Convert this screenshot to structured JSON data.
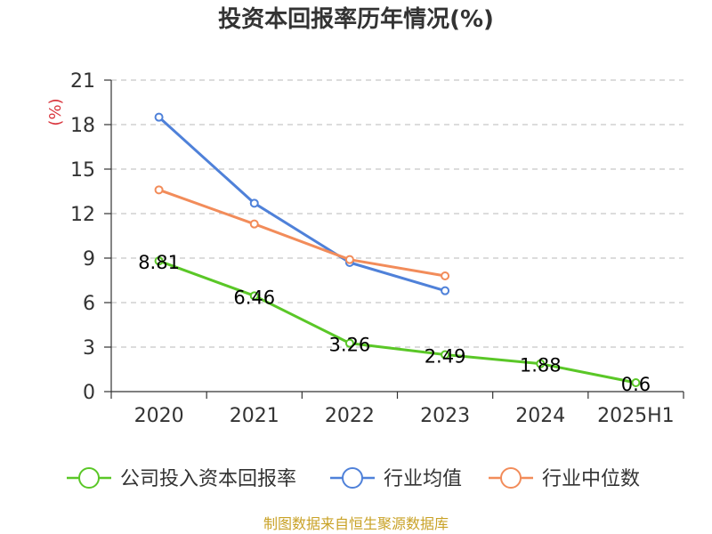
{
  "chart_data": {
    "type": "line",
    "title": "投资本回报率历年情况(%)",
    "ylabel": "(%)",
    "xlabel": "",
    "categories": [
      "2020",
      "2021",
      "2022",
      "2023",
      "2024",
      "2025H1"
    ],
    "ylim": [
      0,
      21
    ],
    "yticks": [
      0,
      3,
      6,
      9,
      12,
      15,
      18,
      21
    ],
    "grid": true,
    "legend_position": "bottom",
    "series": [
      {
        "name": "公司投入资本回报率",
        "color": "#5ac727",
        "values": [
          8.81,
          6.46,
          3.26,
          2.49,
          1.88,
          0.6
        ],
        "labels": [
          "8.81",
          "6.46",
          "3.26",
          "2.49",
          "1.88",
          "0.6"
        ]
      },
      {
        "name": "行业均值",
        "color": "#4f81d9",
        "values": [
          18.5,
          12.7,
          8.7,
          6.8,
          null,
          null
        ]
      },
      {
        "name": "行业中位数",
        "color": "#f28c5a",
        "values": [
          13.6,
          11.3,
          8.9,
          7.8,
          null,
          null
        ]
      }
    ],
    "source": "制图数据来自恒生聚源数据库",
    "ylabel_color": "#d9363e",
    "source_color": "#c9a227"
  }
}
